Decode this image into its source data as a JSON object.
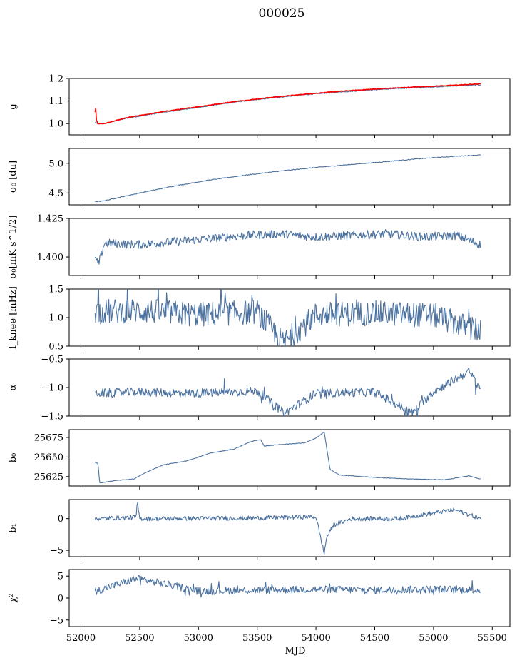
{
  "title": "000025",
  "colors": {
    "series": "#4c72a0",
    "highlight": "#ff0000",
    "axis": "#000000",
    "background": "#ffffff"
  },
  "chart_data": [
    {
      "type": "line",
      "name": "panel-g",
      "ylabel": "g",
      "xlim": [
        51900,
        55650
      ],
      "ylim": [
        0.95,
        1.2
      ],
      "yticks": [
        1.0,
        1.1,
        1.2
      ],
      "ytick_labels": [
        "1.0",
        "1.1",
        "1.2"
      ],
      "x": [
        52120,
        52140,
        52200,
        52400,
        52700,
        53000,
        53300,
        53600,
        53900,
        54200,
        54500,
        54800,
        55100,
        55400
      ],
      "series": [
        {
          "name": "measured",
          "color": "#4c72a0",
          "values": [
            1.005,
            0.998,
            1.0,
            1.025,
            1.05,
            1.072,
            1.095,
            1.112,
            1.128,
            1.14,
            1.15,
            1.158,
            1.165,
            1.172
          ]
        },
        {
          "name": "fit",
          "color": "#ff0000",
          "values": [
            1.06,
            1.0,
            1.0,
            1.027,
            1.053,
            1.075,
            1.097,
            1.115,
            1.13,
            1.143,
            1.153,
            1.161,
            1.168,
            1.176
          ]
        }
      ]
    },
    {
      "type": "line",
      "name": "panel-sigma0-du",
      "ylabel": "σ₀ [du]",
      "xlim": [
        51900,
        55650
      ],
      "ylim": [
        4.3,
        5.25
      ],
      "yticks": [
        4.5,
        5.0
      ],
      "ytick_labels": [
        "4.5",
        "5.0"
      ],
      "x": [
        52120,
        52200,
        52500,
        52800,
        53100,
        53400,
        53700,
        54000,
        54300,
        54600,
        54900,
        55200,
        55400
      ],
      "series": [
        {
          "name": "sigma0",
          "values": [
            4.35,
            4.37,
            4.5,
            4.62,
            4.72,
            4.8,
            4.87,
            4.93,
            4.98,
            5.03,
            5.08,
            5.12,
            5.14
          ]
        }
      ]
    },
    {
      "type": "line",
      "name": "panel-sigma0-mk",
      "ylabel": "σ₀[mK s^1/2]",
      "xlim": [
        51900,
        55650
      ],
      "ylim": [
        1.388,
        1.425
      ],
      "yticks": [
        1.4,
        1.425
      ],
      "ytick_labels": [
        "1.400",
        "1.425"
      ],
      "x": [
        52120,
        52150,
        52200,
        52500,
        52800,
        53100,
        53400,
        53700,
        54000,
        54300,
        54600,
        54900,
        55200,
        55400
      ],
      "series": [
        {
          "name": "sigma0_mK",
          "values": [
            1.399,
            1.395,
            1.409,
            1.408,
            1.41,
            1.412,
            1.414,
            1.415,
            1.413,
            1.414,
            1.415,
            1.413,
            1.414,
            1.408
          ]
        }
      ]
    },
    {
      "type": "line",
      "name": "panel-fknee",
      "ylabel": "f_knee [mHz]",
      "xlim": [
        51900,
        55650
      ],
      "ylim": [
        0.5,
        1.5
      ],
      "yticks": [
        0.5,
        1.0,
        1.5
      ],
      "ytick_labels": [
        "0.5",
        "1.0",
        "1.5"
      ],
      "x": [
        52120,
        52500,
        53000,
        53500,
        53720,
        54000,
        54500,
        55000,
        55400
      ],
      "series": [
        {
          "name": "fknee",
          "values": [
            1.1,
            1.12,
            1.05,
            1.1,
            0.55,
            1.05,
            1.08,
            1.04,
            0.75
          ]
        }
      ]
    },
    {
      "type": "line",
      "name": "panel-alpha",
      "ylabel": "α",
      "xlim": [
        51900,
        55650
      ],
      "ylim": [
        -1.5,
        -0.5
      ],
      "yticks": [
        -1.5,
        -1.0,
        -0.5
      ],
      "ytick_labels": [
        "−1.5",
        "−1.0",
        "−0.5"
      ],
      "x": [
        52120,
        52500,
        53000,
        53500,
        53730,
        54000,
        54500,
        54820,
        55000,
        55300,
        55400
      ],
      "series": [
        {
          "name": "alpha",
          "values": [
            -1.1,
            -1.08,
            -1.1,
            -1.06,
            -1.45,
            -1.1,
            -1.08,
            -1.45,
            -1.07,
            -0.72,
            -1.0
          ]
        }
      ]
    },
    {
      "type": "line",
      "name": "panel-b0",
      "ylabel": "b₀",
      "xlim": [
        51900,
        55650
      ],
      "ylim": [
        25613,
        25685
      ],
      "yticks": [
        25625,
        25650,
        25675
      ],
      "ytick_labels": [
        "25625",
        "25650",
        "25675"
      ],
      "x": [
        52120,
        52145,
        52160,
        52300,
        52450,
        52550,
        52700,
        52900,
        53100,
        53300,
        53450,
        53530,
        53560,
        53700,
        53900,
        54000,
        54070,
        54120,
        54200,
        54500,
        54800,
        55100,
        55300,
        55400
      ],
      "series": [
        {
          "name": "b0",
          "values": [
            25643,
            25642,
            25617,
            25620,
            25622,
            25630,
            25640,
            25645,
            25655,
            25660,
            25670,
            25672,
            25664,
            25666,
            25668,
            25674,
            25682,
            25634,
            25627,
            25624,
            25622,
            25621,
            25626,
            25622
          ]
        }
      ]
    },
    {
      "type": "line",
      "name": "panel-b1",
      "ylabel": "b₁",
      "xlim": [
        51900,
        55650
      ],
      "ylim": [
        -6,
        3
      ],
      "yticks": [
        -5,
        0
      ],
      "ytick_labels": [
        "−5",
        "0"
      ],
      "x": [
        52120,
        52470,
        52480,
        52500,
        53500,
        54000,
        54070,
        54090,
        54150,
        54300,
        54700,
        55180,
        55400
      ],
      "series": [
        {
          "name": "b1",
          "values": [
            0,
            0.2,
            2.6,
            0,
            0.1,
            0.3,
            -5.5,
            -3,
            -1,
            0,
            0,
            1.4,
            0
          ]
        }
      ]
    },
    {
      "type": "line",
      "name": "panel-chi2",
      "ylabel": "χ²",
      "xlim": [
        51900,
        55650
      ],
      "ylim": [
        -6.5,
        6.5
      ],
      "yticks": [
        -5,
        0,
        5
      ],
      "ytick_labels": [
        "−5",
        "0",
        "5"
      ],
      "xticks": [
        52000,
        52500,
        53000,
        53500,
        54000,
        54500,
        55000,
        55500
      ],
      "xtick_labels": [
        "52000",
        "52500",
        "53000",
        "53500",
        "54000",
        "54500",
        "55000",
        "55500"
      ],
      "xlabel": "MJD",
      "x": [
        52120,
        52480,
        53000,
        53500,
        54000,
        54500,
        55000,
        55400
      ],
      "series": [
        {
          "name": "chi2",
          "values": [
            1.5,
            4.5,
            1.6,
            1.8,
            2.0,
            1.8,
            2.0,
            1.8
          ]
        }
      ]
    }
  ]
}
